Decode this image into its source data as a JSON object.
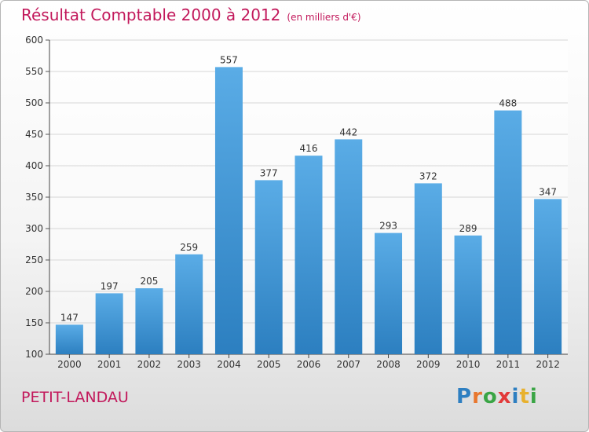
{
  "header": {
    "title": "Résultat Comptable 2000 à 2012",
    "subtitle": "(en milliers d'€)"
  },
  "footer": {
    "town": "PETIT-LANDAU",
    "brand": "Proxiti",
    "brand_letters": [
      {
        "ch": "P",
        "color": "#2e7fc1"
      },
      {
        "ch": "r",
        "color": "#e8772e"
      },
      {
        "ch": "o",
        "color": "#3aa545"
      },
      {
        "ch": "x",
        "color": "#e23a3a"
      },
      {
        "ch": "i",
        "color": "#2e7fc1"
      },
      {
        "ch": "t",
        "color": "#e8b12e"
      },
      {
        "ch": "i",
        "color": "#3aa545"
      }
    ]
  },
  "colors": {
    "title": "#c2185b",
    "bar_top": "#5aace6",
    "bar_bottom": "#2c7fc0",
    "grid": "#d6d6d6"
  },
  "chart_data": {
    "type": "bar",
    "title": "Résultat Comptable 2000 à 2012",
    "subtitle": "(en milliers d'€)",
    "categories": [
      "2000",
      "2001",
      "2002",
      "2003",
      "2004",
      "2005",
      "2006",
      "2007",
      "2008",
      "2009",
      "2010",
      "2011",
      "2012"
    ],
    "values": [
      147,
      197,
      205,
      259,
      557,
      377,
      416,
      442,
      293,
      372,
      289,
      488,
      347
    ],
    "ylim": [
      100,
      600
    ],
    "yticks": [
      100,
      150,
      200,
      250,
      300,
      350,
      400,
      450,
      500,
      550,
      600
    ],
    "grid": true,
    "data_labels": true
  }
}
